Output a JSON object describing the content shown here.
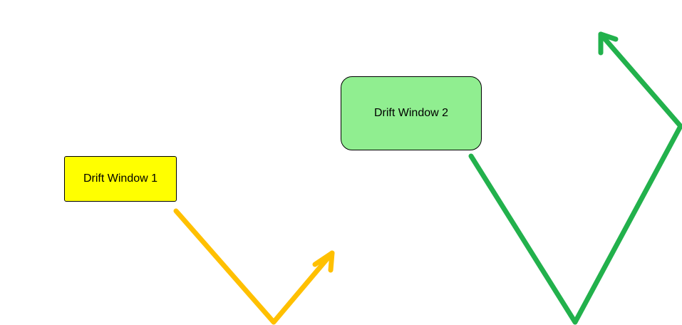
{
  "windows": [
    {
      "label": "Drift Window 1",
      "fill": "#ffff00"
    },
    {
      "label": "Drift Window 2",
      "fill": "#90ee90"
    }
  ],
  "arrows": [
    {
      "color": "#ffc000",
      "description": "down-then-up arrow from Drift Window 1"
    },
    {
      "color": "#22b14c",
      "description": "down-then-up arrow from Drift Window 2"
    }
  ]
}
